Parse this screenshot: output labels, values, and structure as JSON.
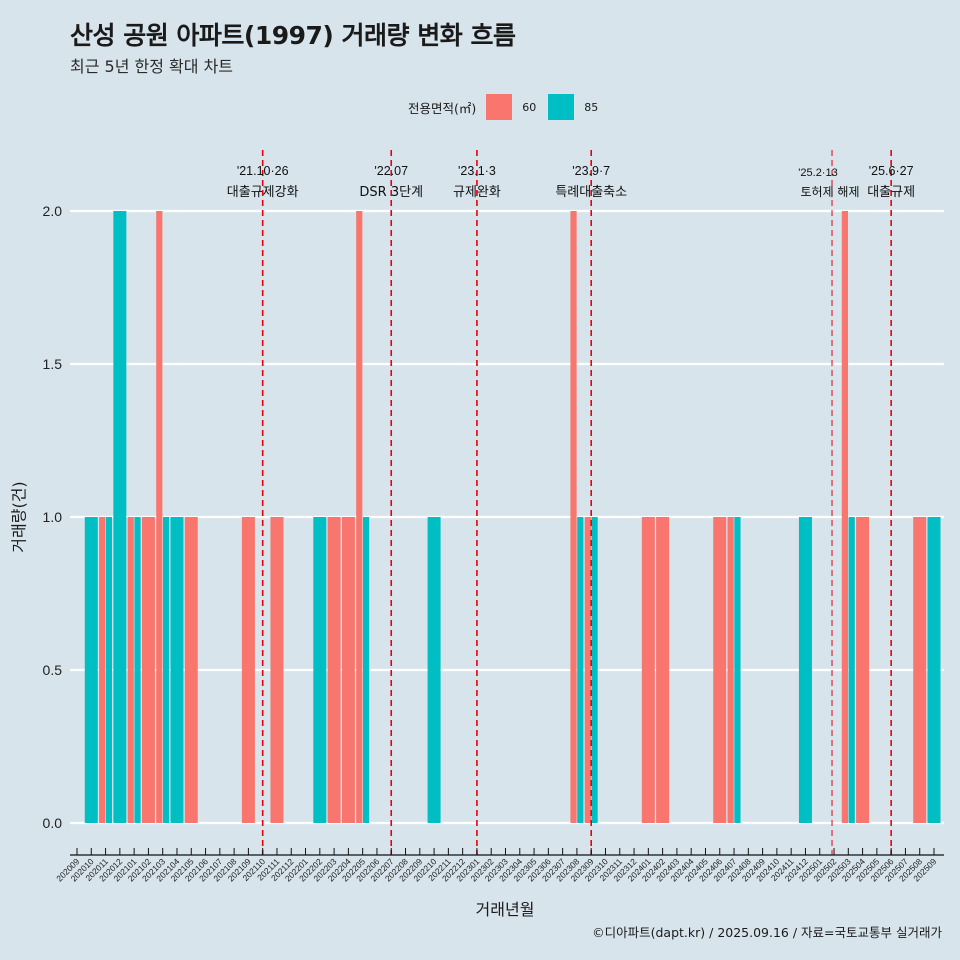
{
  "header": {
    "title": "산성 공원 아파트(1997) 거래량 변화 흐름",
    "subtitle": "최근 5년 한정 확대 차트"
  },
  "legend": {
    "title": "전용면적(㎡)",
    "items": [
      {
        "label": "60",
        "color": "#f8766d"
      },
      {
        "label": "85",
        "color": "#00bfc4"
      }
    ]
  },
  "caption": "©디아파트(dapt.kr) / 2025.09.16 / 자료=국토교통부 실거래가",
  "chart_data": {
    "type": "bar",
    "title": "산성 공원 아파트(1997) 거래량 변화 흐름",
    "subtitle": "최근 5년 한정 확대 차트",
    "xlabel": "거래년월",
    "ylabel": "거래량(건)",
    "ylim": [
      0,
      2
    ],
    "yticks": [
      "0.0",
      "0.5",
      "1.0",
      "1.5",
      "2.0"
    ],
    "yticks_values": [
      0,
      0.5,
      1.0,
      1.5,
      2.0
    ],
    "grid": true,
    "legend_position": "top",
    "categories": [
      "202009",
      "202010",
      "202011",
      "202012",
      "202101",
      "202102",
      "202103",
      "202104",
      "202105",
      "202106",
      "202107",
      "202108",
      "202109",
      "202110",
      "202111",
      "202112",
      "202201",
      "202202",
      "202203",
      "202204",
      "202205",
      "202206",
      "202207",
      "202208",
      "202209",
      "202210",
      "202211",
      "202212",
      "202301",
      "202302",
      "202303",
      "202304",
      "202305",
      "202306",
      "202307",
      "202308",
      "202309",
      "202310",
      "202311",
      "202312",
      "202401",
      "202402",
      "202403",
      "202404",
      "202405",
      "202406",
      "202407",
      "202408",
      "202409",
      "202410",
      "202411",
      "202412",
      "202501",
      "202502",
      "202503",
      "202504",
      "202505",
      "202506",
      "202507",
      "202508",
      "202509"
    ],
    "series": [
      {
        "name": "60",
        "color": "#f8766d",
        "values": {
          "202011": 1,
          "202101": 1,
          "202102": 1,
          "202103": 2,
          "202105": 1,
          "202109": 1,
          "202111": 1,
          "202203": 1,
          "202204": 1,
          "202205": 2,
          "202308": 2,
          "202309": 1,
          "202401": 1,
          "202402": 1,
          "202406": 1,
          "202407": 1,
          "202503": 2,
          "202504": 1,
          "202508": 1
        }
      },
      {
        "name": "85",
        "color": "#00bfc4",
        "values": {
          "202010": 1,
          "202011": 1,
          "202012": 2,
          "202101": 1,
          "202103": 1,
          "202104": 1,
          "202202": 1,
          "202205": 1,
          "202210": 1,
          "202308": 1,
          "202309": 1,
          "202407": 1,
          "202412": 1,
          "202503": 1,
          "202509": 1
        }
      }
    ],
    "annotations": [
      {
        "month": "202110",
        "date": "'21.10·26",
        "label": "대출규제강화"
      },
      {
        "month": "202207",
        "date": "'22.07",
        "label": "DSR 3단계"
      },
      {
        "month": "202301",
        "date": "'23.1·3",
        "label": "규제완화"
      },
      {
        "month": "202309",
        "date": "'23.9·7",
        "label": "특례대출축소"
      },
      {
        "month": "202502",
        "date": "'25.2·13",
        "label": "토허제 해제"
      },
      {
        "month": "202506",
        "date": "'25.6·27",
        "label": "대출규제"
      }
    ]
  }
}
